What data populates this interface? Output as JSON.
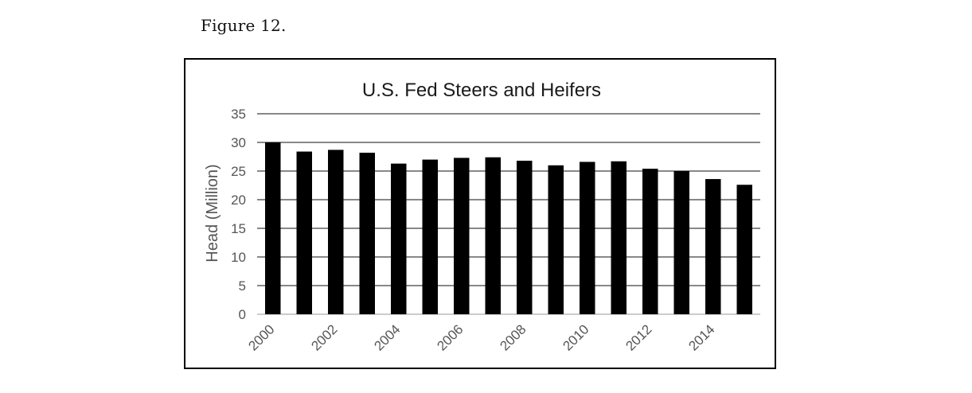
{
  "figure_label": "Figure 12.",
  "chart_data": {
    "type": "bar",
    "title": "U.S. Fed Steers and Heifers",
    "xlabel": "",
    "ylabel": "Head (Million)",
    "ylim": [
      0,
      35
    ],
    "yticks": [
      0,
      5,
      10,
      15,
      20,
      25,
      30,
      35
    ],
    "grid": true,
    "legend": "none",
    "bar_color": "#000000",
    "categories": [
      "2000",
      "2001",
      "2002",
      "2003",
      "2004",
      "2005",
      "2006",
      "2007",
      "2008",
      "2009",
      "2010",
      "2011",
      "2012",
      "2013",
      "2014",
      "2015"
    ],
    "x_tick_labels": [
      "2000",
      "",
      "2002",
      "",
      "2004",
      "",
      "2006",
      "",
      "2008",
      "",
      "2010",
      "",
      "2012",
      "",
      "2014",
      ""
    ],
    "values": [
      30.0,
      28.4,
      28.7,
      28.2,
      26.3,
      27.0,
      27.3,
      27.4,
      26.8,
      26.0,
      26.6,
      26.7,
      25.4,
      25.0,
      23.6,
      22.6
    ]
  }
}
